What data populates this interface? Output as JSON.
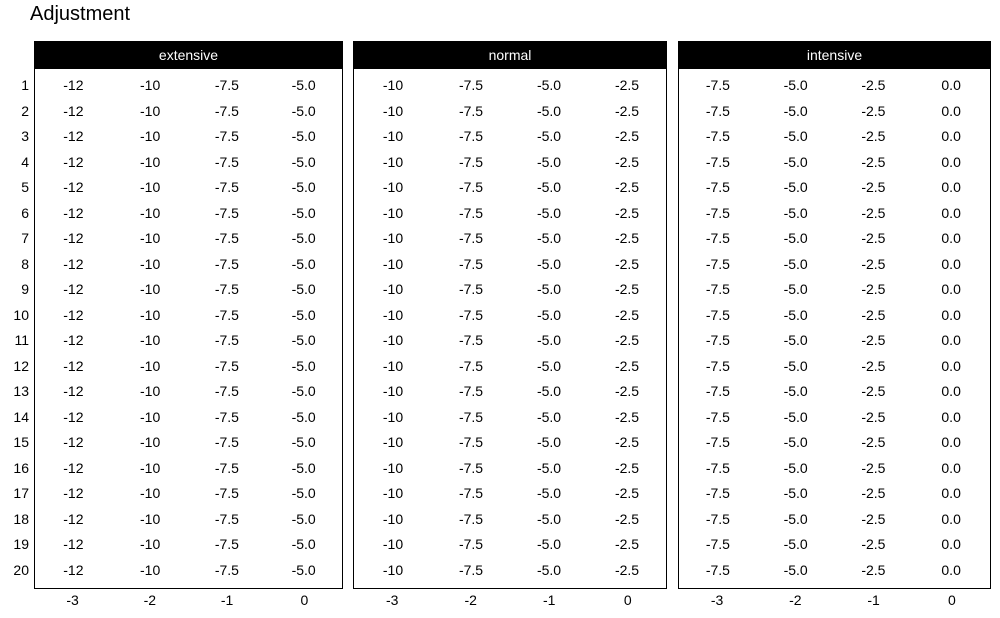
{
  "title": "Adjustment",
  "num_rows": 20,
  "row_labels": [
    "1",
    "2",
    "3",
    "4",
    "5",
    "6",
    "7",
    "8",
    "9",
    "10",
    "11",
    "12",
    "13",
    "14",
    "15",
    "16",
    "17",
    "18",
    "19",
    "20"
  ],
  "x_axis_labels": [
    "-3",
    "-2",
    "-1",
    "0"
  ],
  "panels": [
    {
      "id": "extensive",
      "label": "extensive",
      "row_values": [
        "-12",
        "-10",
        "-7.5",
        "-5.0"
      ]
    },
    {
      "id": "normal",
      "label": "normal",
      "row_values": [
        "-10",
        "-7.5",
        "-5.0",
        "-2.5"
      ]
    },
    {
      "id": "intensive",
      "label": "intensive",
      "row_values": [
        "-7.5",
        "-5.0",
        "-2.5",
        "0.0"
      ]
    }
  ],
  "colors": {
    "background": "#ffffff",
    "text": "#000000",
    "border": "#000000",
    "header_bg": "#000000",
    "header_text": "#ffffff"
  },
  "chart_data": {
    "type": "table",
    "title": "Adjustment",
    "row_labels": [
      1,
      2,
      3,
      4,
      5,
      6,
      7,
      8,
      9,
      10,
      11,
      12,
      13,
      14,
      15,
      16,
      17,
      18,
      19,
      20
    ],
    "x_tick_labels": [
      -3,
      -2,
      -1,
      0
    ],
    "panels": [
      {
        "name": "extensive",
        "num_rows": 20,
        "values_per_row": [
          -12,
          -10,
          -7.5,
          -5.0
        ]
      },
      {
        "name": "normal",
        "num_rows": 20,
        "values_per_row": [
          -10,
          -7.5,
          -5.0,
          -2.5
        ]
      },
      {
        "name": "intensive",
        "num_rows": 20,
        "values_per_row": [
          -7.5,
          -5.0,
          -2.5,
          0.0
        ]
      }
    ],
    "layout": "three side-by-side 20x4 tables sharing row labels 1-20 on the left and x tick labels -3 to 0 below each table; all 20 rows identical within each panel",
    "legend_position": "none",
    "grid": false
  }
}
